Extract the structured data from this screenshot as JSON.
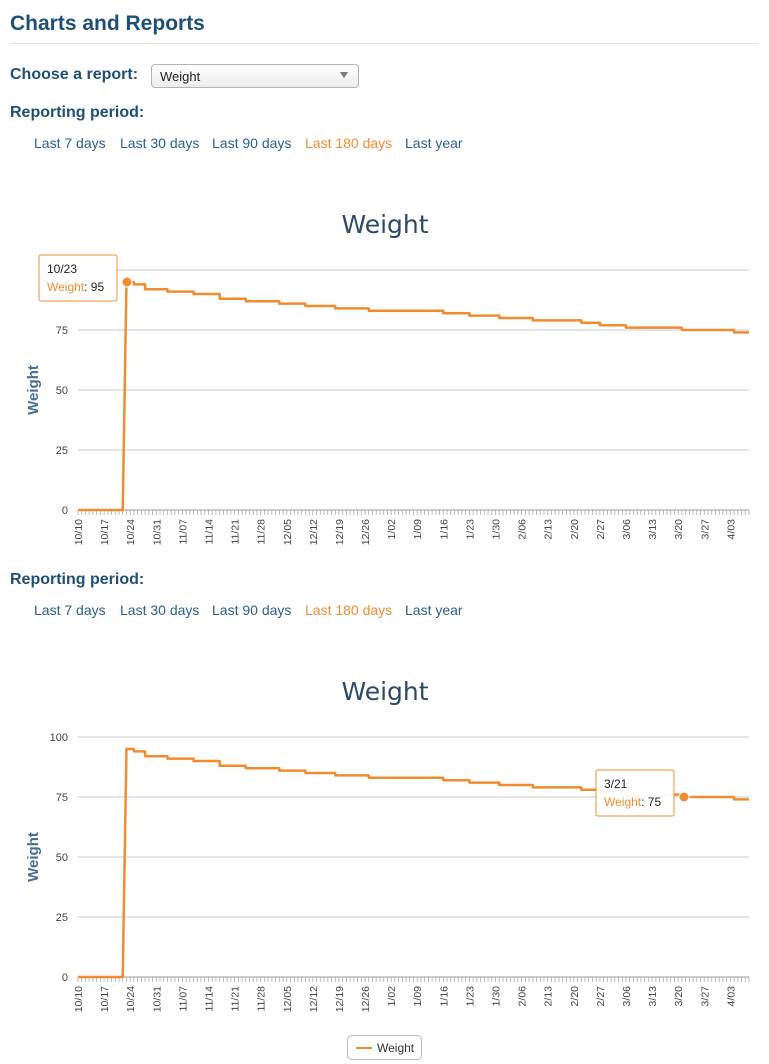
{
  "page": {
    "title": "Charts and Reports"
  },
  "report_select": {
    "label": "Choose a report:",
    "value": "Weight"
  },
  "reporting_period": {
    "label": "Reporting period:",
    "links": [
      "Last 7 days",
      "Last 30 days",
      "Last 90 days",
      "Last 180 days",
      "Last year"
    ],
    "active": "Last 180 days"
  },
  "colors": {
    "series": "#ef8c2f",
    "heading": "#1e4f74",
    "chart_title": "#2c4966",
    "link": "#2b5f8c",
    "grid": "#c8c8c8"
  },
  "legend": {
    "label": "Weight"
  },
  "chart_data": [
    {
      "type": "line",
      "title": "Weight",
      "ylabel": "Weight",
      "xlabel": "",
      "ylim": [
        0,
        100
      ],
      "yticks": [
        0,
        25,
        50,
        75,
        100
      ],
      "xlim": [
        "2015-10-10",
        "2016-04-07"
      ],
      "xticks": [
        "10/10",
        "10/17",
        "10/24",
        "10/31",
        "11/07",
        "11/14",
        "11/21",
        "11/28",
        "12/05",
        "12/12",
        "12/19",
        "12/26",
        "1/02",
        "1/09",
        "1/16",
        "1/23",
        "1/30",
        "2/06",
        "2/13",
        "2/20",
        "2/27",
        "3/06",
        "3/13",
        "3/20",
        "3/27",
        "4/03"
      ],
      "grid": true,
      "series": [
        {
          "name": "Weight",
          "x": [
            "2015-10-10",
            "2015-10-22",
            "2015-10-23",
            "2015-10-25",
            "2015-10-28",
            "2015-11-03",
            "2015-11-10",
            "2015-11-17",
            "2015-11-24",
            "2015-12-03",
            "2015-12-10",
            "2015-12-18",
            "2015-12-27",
            "2016-01-02",
            "2016-01-16",
            "2016-01-23",
            "2016-01-31",
            "2016-02-09",
            "2016-02-22",
            "2016-02-27",
            "2016-03-05",
            "2016-03-20",
            "2016-04-03",
            "2016-04-07"
          ],
          "y": [
            0,
            0,
            95,
            94,
            92,
            91,
            90,
            88,
            87,
            86,
            85,
            84,
            83,
            83,
            82,
            81,
            80,
            79,
            78,
            77,
            76,
            75,
            74,
            74
          ]
        }
      ],
      "tooltip": {
        "date": "10/23",
        "series": "Weight",
        "value": 95
      }
    },
    {
      "type": "line",
      "title": "Weight",
      "ylabel": "Weight",
      "xlabel": "",
      "ylim": [
        0,
        100
      ],
      "yticks": [
        0,
        25,
        50,
        75,
        100
      ],
      "xlim": [
        "2015-10-10",
        "2016-04-07"
      ],
      "xticks": [
        "10/10",
        "10/17",
        "10/24",
        "10/31",
        "11/07",
        "11/14",
        "11/21",
        "11/28",
        "12/05",
        "12/12",
        "12/19",
        "12/26",
        "1/02",
        "1/09",
        "1/16",
        "1/23",
        "1/30",
        "2/06",
        "2/13",
        "2/20",
        "2/27",
        "3/06",
        "3/13",
        "3/20",
        "3/27",
        "4/03"
      ],
      "grid": true,
      "legend": "bottom-center",
      "series": [
        {
          "name": "Weight",
          "x": [
            "2015-10-10",
            "2015-10-22",
            "2015-10-23",
            "2015-10-25",
            "2015-10-28",
            "2015-11-03",
            "2015-11-10",
            "2015-11-17",
            "2015-11-24",
            "2015-12-03",
            "2015-12-10",
            "2015-12-18",
            "2015-12-27",
            "2016-01-02",
            "2016-01-16",
            "2016-01-23",
            "2016-01-31",
            "2016-02-09",
            "2016-02-22",
            "2016-02-27",
            "2016-03-05",
            "2016-03-20",
            "2016-04-03",
            "2016-04-07"
          ],
          "y": [
            0,
            0,
            95,
            94,
            92,
            91,
            90,
            88,
            87,
            86,
            85,
            84,
            83,
            83,
            82,
            81,
            80,
            79,
            78,
            77,
            76,
            75,
            74,
            74
          ]
        }
      ],
      "tooltip": {
        "date": "3/21",
        "series": "Weight",
        "value": 75
      }
    }
  ]
}
